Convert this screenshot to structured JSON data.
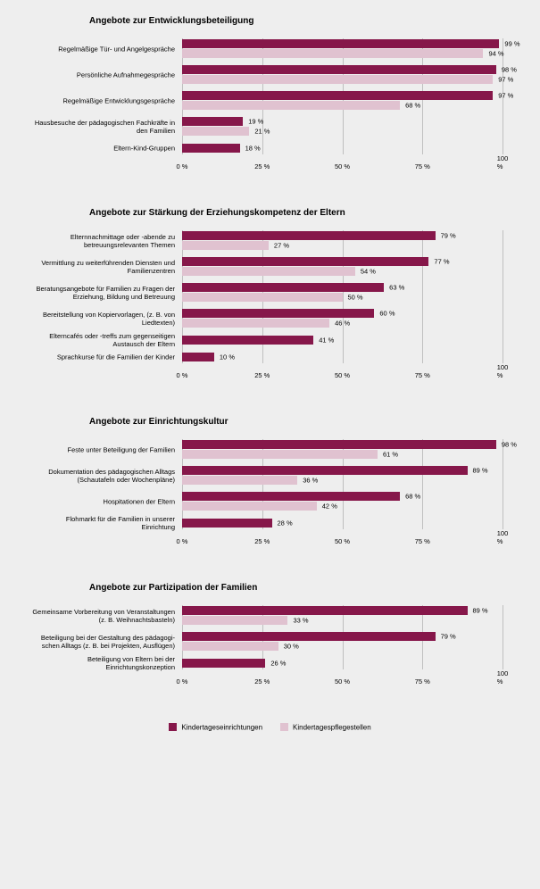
{
  "colors": {
    "series1": "#86174a",
    "series2": "#e0c2d0",
    "grid": "#bfbfbf",
    "background": "#eeeeee"
  },
  "legend": {
    "series1": "Kindertageseinrichtungen",
    "series2": "Kindertagespflegestellen"
  },
  "axis": {
    "ticks": [
      0,
      25,
      50,
      75,
      100
    ],
    "tick_labels": [
      "0 %",
      "25 %",
      "50 %",
      "75 %",
      "100 %"
    ]
  },
  "sections": [
    {
      "title": "Angebote zur Entwicklungsbeteiligung",
      "rows": [
        {
          "label": "Regelmäßige Tür- und Angelgespräche",
          "v1": 99,
          "v2": 94
        },
        {
          "label": "Persönliche Aufnahmegespräche",
          "v1": 98,
          "v2": 97
        },
        {
          "label": "Regelmäßige Entwicklungsgespräche",
          "v1": 97,
          "v2": 68
        },
        {
          "label": "Hausbesuche der pädagogischen Fachkräfte in den Familien",
          "v1": 19,
          "v2": 21
        },
        {
          "label": "Eltern-Kind-Gruppen",
          "v1": 18,
          "v2": null
        }
      ]
    },
    {
      "title": "Angebote zur Stärkung der Erziehungskompetenz der Eltern",
      "rows": [
        {
          "label": "Elternnachmittage oder -abende zu betreuungsrelevanten Themen",
          "v1": 79,
          "v2": 27
        },
        {
          "label": "Vermittlung zu weiterführenden Diensten und Familienzentren",
          "v1": 77,
          "v2": 54
        },
        {
          "label": "Beratungsangebote für Familien zu Fragen der Erziehung, Bildung und Betreuung",
          "v1": 63,
          "v2": 50
        },
        {
          "label": "Bereitstellung von Kopiervorlagen, (z. B. von Liedtexten)",
          "v1": 60,
          "v2": 46
        },
        {
          "label": "Elterncafés oder -treffs zum gegenseitigen Austausch der Eltern",
          "v1": 41,
          "v2": null
        },
        {
          "label": "Sprachkurse für die Familien der Kinder",
          "v1": 10,
          "v2": null
        }
      ]
    },
    {
      "title": "Angebote zur Einrichtungskultur",
      "rows": [
        {
          "label": "Feste unter Beteiligung der Familien",
          "v1": 98,
          "v2": 61
        },
        {
          "label": "Dokumentation des pädagogischen Alltags (Schautafeln oder Wochenpläne)",
          "v1": 89,
          "v2": 36
        },
        {
          "label": "Hospitationen der Eltern",
          "v1": 68,
          "v2": 42
        },
        {
          "label": "Flohmarkt für die Familien in unserer Einrichtung",
          "v1": 28,
          "v2": null
        }
      ]
    },
    {
      "title": "Angebote zur Partizipation der Familien",
      "rows": [
        {
          "label": "Gemeinsame Vorbereitung von Veranstaltungen (z. B. Weihnachtsbasteln)",
          "v1": 89,
          "v2": 33
        },
        {
          "label": "Beteiligung bei der Gestaltung des pädagogi­schen Alltags (z. B. bei Projekten, Ausflügen)",
          "v1": 79,
          "v2": 30
        },
        {
          "label": "Beteiligung von Eltern bei der Einrichtungskonzeption",
          "v1": 26,
          "v2": null
        }
      ]
    }
  ]
}
